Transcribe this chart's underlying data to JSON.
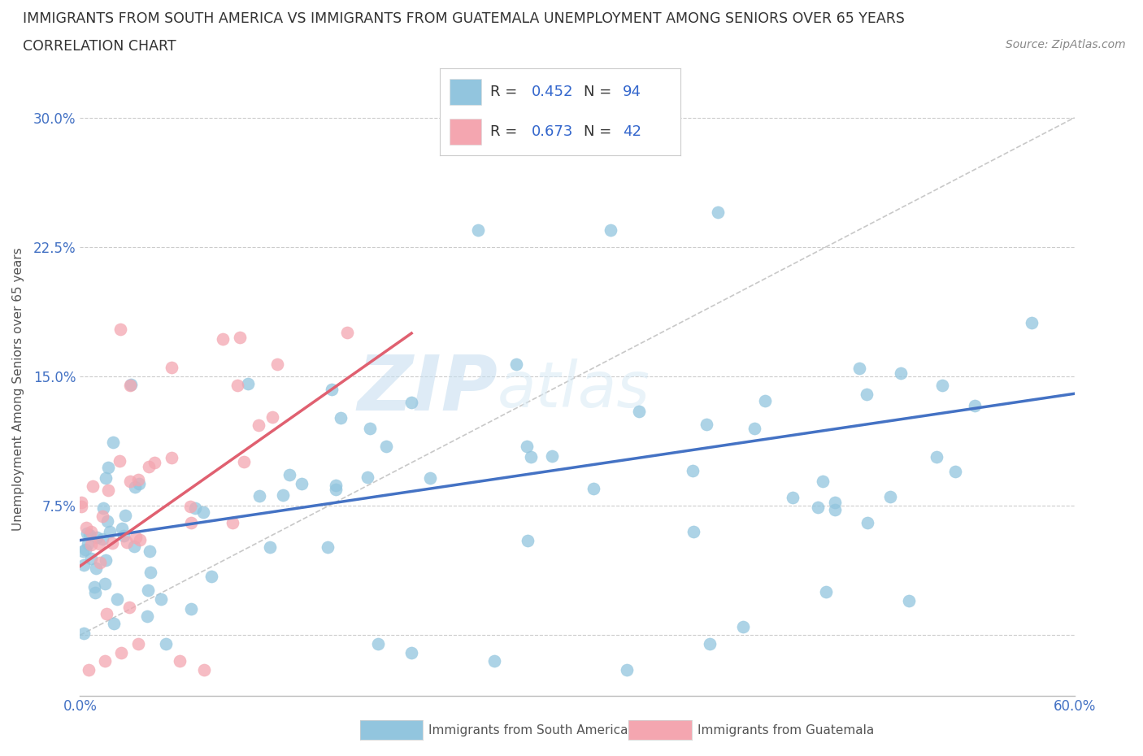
{
  "title_line1": "IMMIGRANTS FROM SOUTH AMERICA VS IMMIGRANTS FROM GUATEMALA UNEMPLOYMENT AMONG SENIORS OVER 65 YEARS",
  "title_line2": "CORRELATION CHART",
  "source_text": "Source: ZipAtlas.com",
  "ylabel": "Unemployment Among Seniors over 65 years",
  "xlim": [
    0.0,
    0.6
  ],
  "ylim": [
    -0.035,
    0.32
  ],
  "yticks": [
    0.0,
    0.075,
    0.15,
    0.225,
    0.3
  ],
  "ytick_labels": [
    "",
    "7.5%",
    "15.0%",
    "22.5%",
    "30.0%"
  ],
  "r_south_america": 0.452,
  "n_south_america": 94,
  "r_guatemala": 0.673,
  "n_guatemala": 42,
  "color_south_america": "#92c5de",
  "color_south_america_line": "#4472c4",
  "color_guatemala": "#f4a6b0",
  "color_guatemala_line": "#e06070",
  "color_blue_text": "#3366cc",
  "watermark_zip": "ZIP",
  "watermark_atlas": "atlas",
  "legend_label_sa": "Immigrants from South America",
  "legend_label_gt": "Immigrants from Guatemala",
  "sa_line_x0": 0.0,
  "sa_line_y0": 0.055,
  "sa_line_x1": 0.6,
  "sa_line_y1": 0.14,
  "gt_line_x0": 0.0,
  "gt_line_y0": 0.04,
  "gt_line_x1": 0.2,
  "gt_line_y1": 0.175,
  "ref_line_x0": 0.0,
  "ref_line_y0": 0.0,
  "ref_line_x1": 0.6,
  "ref_line_y1": 0.3
}
